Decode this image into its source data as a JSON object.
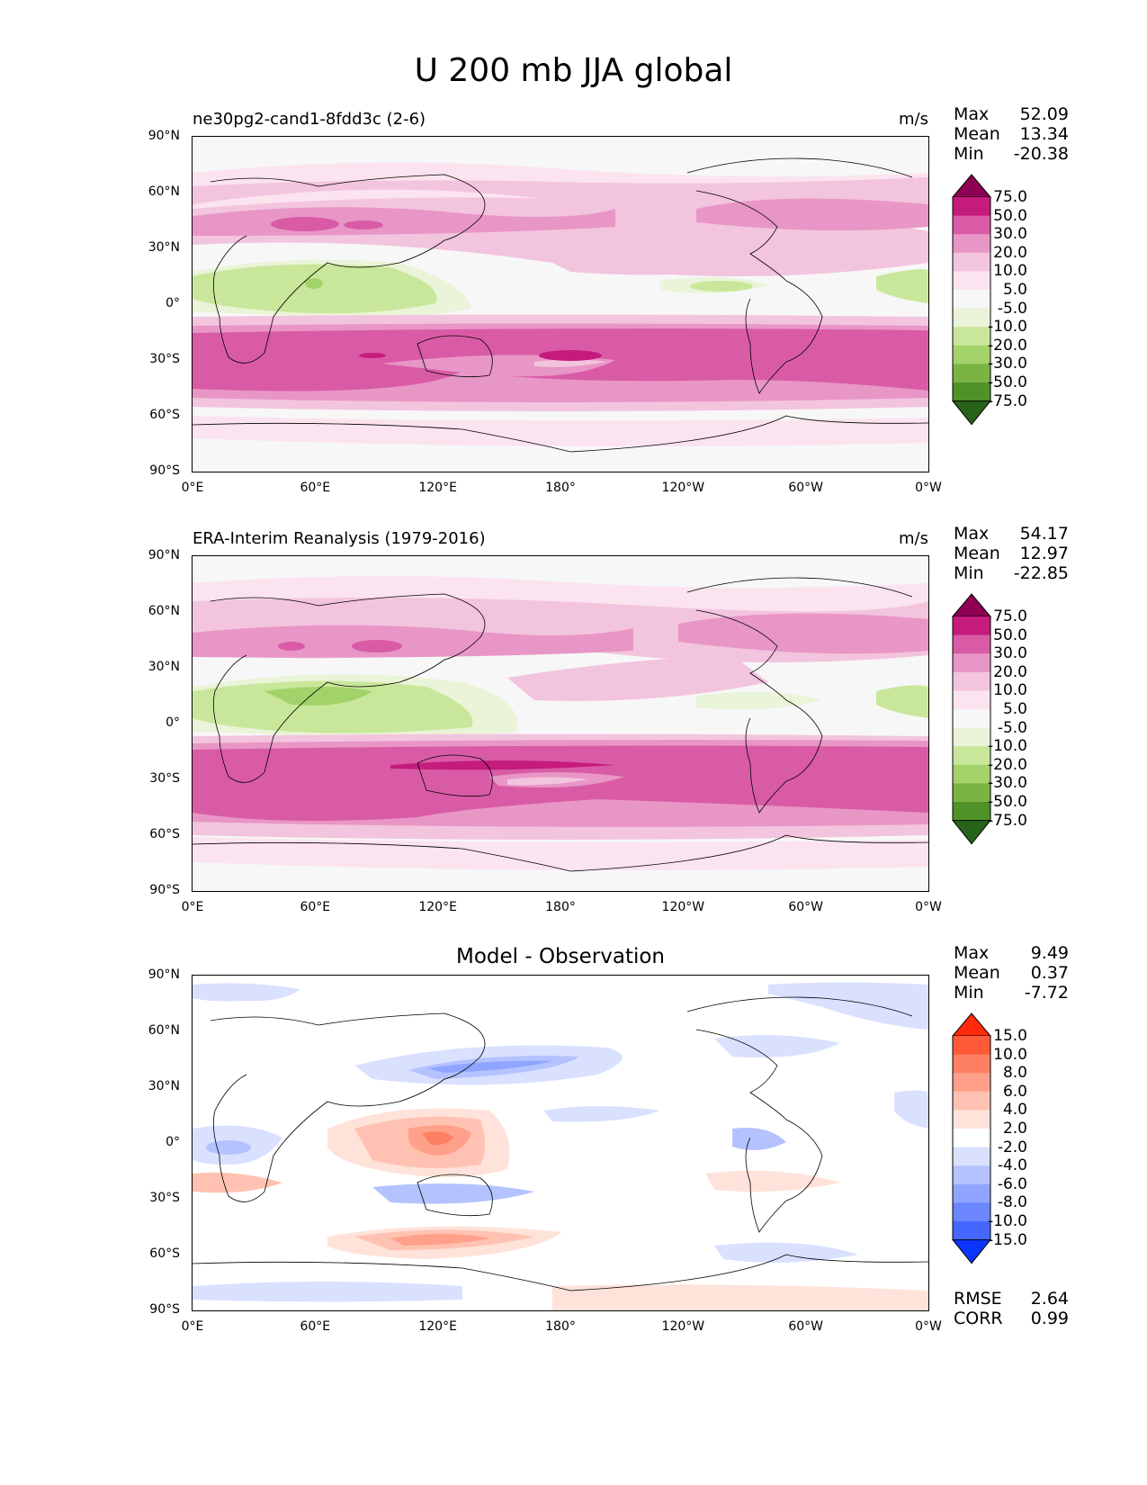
{
  "figure": {
    "title": "U 200 mb JJA global"
  },
  "x_ticks": [
    "0°E",
    "60°E",
    "120°E",
    "180°",
    "120°W",
    "60°W",
    "0°W"
  ],
  "y_ticks": [
    "90°N",
    "60°N",
    "30°N",
    "0°",
    "30°S",
    "60°S",
    "90°S"
  ],
  "panels": [
    {
      "title": "ne30pg2-cand1-8fdd3c (2-6)",
      "units": "m/s",
      "stats": [
        {
          "label": "Max",
          "value": "52.09"
        },
        {
          "label": "Mean",
          "value": "13.34"
        },
        {
          "label": "Min",
          "value": "-20.38"
        }
      ]
    },
    {
      "title": "ERA-Interim Reanalysis (1979-2016)",
      "units": "m/s",
      "stats": [
        {
          "label": "Max",
          "value": "54.17"
        },
        {
          "label": "Mean",
          "value": "12.97"
        },
        {
          "label": "Min",
          "value": "-22.85"
        }
      ]
    },
    {
      "title": "Model - Observation",
      "units": "",
      "stats": [
        {
          "label": "Max",
          "value": "9.49"
        },
        {
          "label": "Mean",
          "value": "0.37"
        },
        {
          "label": "Min",
          "value": "-7.72"
        }
      ],
      "extra_stats": [
        {
          "label": "RMSE",
          "value": "2.64"
        },
        {
          "label": "CORR",
          "value": "0.99"
        }
      ]
    }
  ],
  "colorbars": {
    "field": {
      "labels": [
        "75.0",
        "50.0",
        "30.0",
        "20.0",
        "10.0",
        "5.0",
        "-5.0",
        "-10.0",
        "-20.0",
        "-30.0",
        "-50.0",
        "-75.0"
      ],
      "colors": [
        "#8e0152",
        "#c51b7d",
        "#d95ba6",
        "#e896c6",
        "#f3c4de",
        "#fbe3ef",
        "#f7f7f7",
        "#eaf4d8",
        "#c9e79a",
        "#a3d26a",
        "#7cb443",
        "#4f9228",
        "#276419"
      ]
    },
    "diff": {
      "labels": [
        "15.0",
        "10.0",
        "8.0",
        "6.0",
        "4.0",
        "2.0",
        "-2.0",
        "-4.0",
        "-6.0",
        "-8.0",
        "-10.0",
        "-15.0"
      ],
      "colors": [
        "#ff2a0a",
        "#ff5a38",
        "#ff7f62",
        "#ffa08a",
        "#ffc2b2",
        "#ffe2d9",
        "#ffffff",
        "#d9e1ff",
        "#b4c3ff",
        "#8fa5ff",
        "#6b86ff",
        "#4667ff",
        "#0b35ff"
      ]
    }
  }
}
